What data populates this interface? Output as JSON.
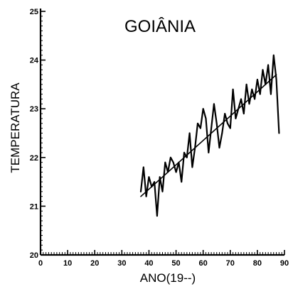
{
  "chart_data": {
    "type": "line",
    "title": "GOIÂNIA",
    "xlabel": "ANO(19--)",
    "ylabel": "TEMPERATURA",
    "xlim": [
      0,
      90
    ],
    "ylim": [
      20,
      25
    ],
    "x_ticks": [
      0,
      10,
      20,
      30,
      40,
      50,
      60,
      70,
      80,
      90
    ],
    "y_ticks": [
      20,
      21,
      22,
      23,
      24,
      25
    ],
    "x_tick_labels": [
      "0",
      "10",
      "20",
      "30",
      "40",
      "50",
      "60",
      "70",
      "80",
      "90"
    ],
    "y_tick_labels": [
      "20",
      "21",
      "22",
      "23",
      "24",
      "25"
    ],
    "grid": false,
    "legend": "none",
    "series": [
      {
        "kind": "observed",
        "x": [
          37,
          38,
          39,
          40,
          41,
          42,
          43,
          44,
          45,
          46,
          47,
          48,
          49,
          50,
          51,
          52,
          53,
          54,
          55,
          56,
          57,
          58,
          59,
          60,
          61,
          62,
          63,
          64,
          65,
          66,
          67,
          68,
          69,
          70,
          71,
          72,
          73,
          74,
          75,
          76,
          77,
          78,
          79,
          80,
          81,
          82,
          83,
          84,
          85,
          86,
          87,
          88
        ],
        "y": [
          21.3,
          21.8,
          21.2,
          21.6,
          21.4,
          21.5,
          20.8,
          21.6,
          21.3,
          21.9,
          21.7,
          22.0,
          21.9,
          21.7,
          21.9,
          21.5,
          22.1,
          22.0,
          22.5,
          21.8,
          22.2,
          22.7,
          22.6,
          23.0,
          22.8,
          22.1,
          22.6,
          23.1,
          22.7,
          22.2,
          22.5,
          22.9,
          22.7,
          22.6,
          23.4,
          22.8,
          23.0,
          23.2,
          22.9,
          23.5,
          23.1,
          23.4,
          23.2,
          23.6,
          23.3,
          23.8,
          23.5,
          23.9,
          23.3,
          24.1,
          23.6,
          22.5
        ]
      },
      {
        "kind": "trend",
        "x": [
          37,
          87
        ],
        "y": [
          21.2,
          23.7
        ]
      }
    ]
  }
}
